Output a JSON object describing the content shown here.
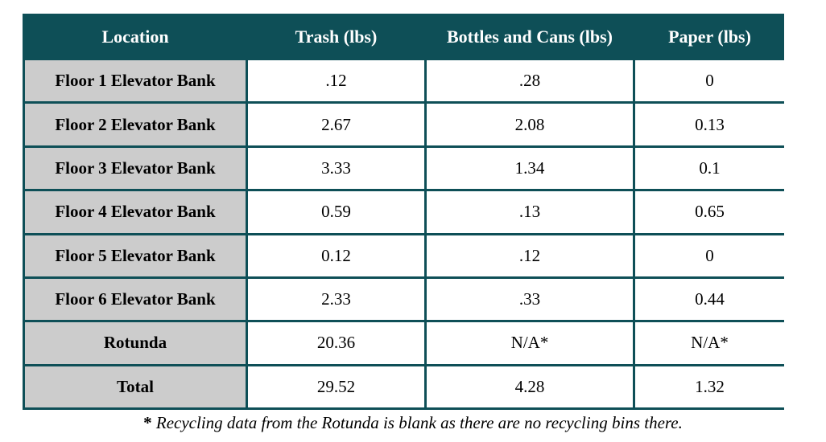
{
  "table": {
    "headers": [
      "Location",
      "Trash (lbs)",
      "Bottles and Cans (lbs)",
      "Paper (lbs)"
    ],
    "rows": [
      [
        "Floor 1 Elevator Bank",
        ".12",
        ".28",
        "0"
      ],
      [
        "Floor 2 Elevator Bank",
        "2.67",
        "2.08",
        "0.13"
      ],
      [
        "Floor 3 Elevator Bank",
        "3.33",
        "1.34",
        "0.1"
      ],
      [
        "Floor 4 Elevator Bank",
        "0.59",
        ".13",
        "0.65"
      ],
      [
        "Floor 5 Elevator Bank",
        "0.12",
        ".12",
        "0"
      ],
      [
        "Floor 6 Elevator Bank",
        "2.33",
        ".33",
        "0.44"
      ],
      [
        "Rotunda",
        "20.36",
        "N/A*",
        "N/A*"
      ],
      [
        "Total",
        "29.52",
        "4.28",
        "1.32"
      ]
    ]
  },
  "footnote": {
    "star": "*",
    "text": " Recycling data from the Rotunda is blank as there are no recycling bins there."
  },
  "colors": {
    "header_bg": "#0e4f57",
    "location_bg": "#cccccc"
  }
}
